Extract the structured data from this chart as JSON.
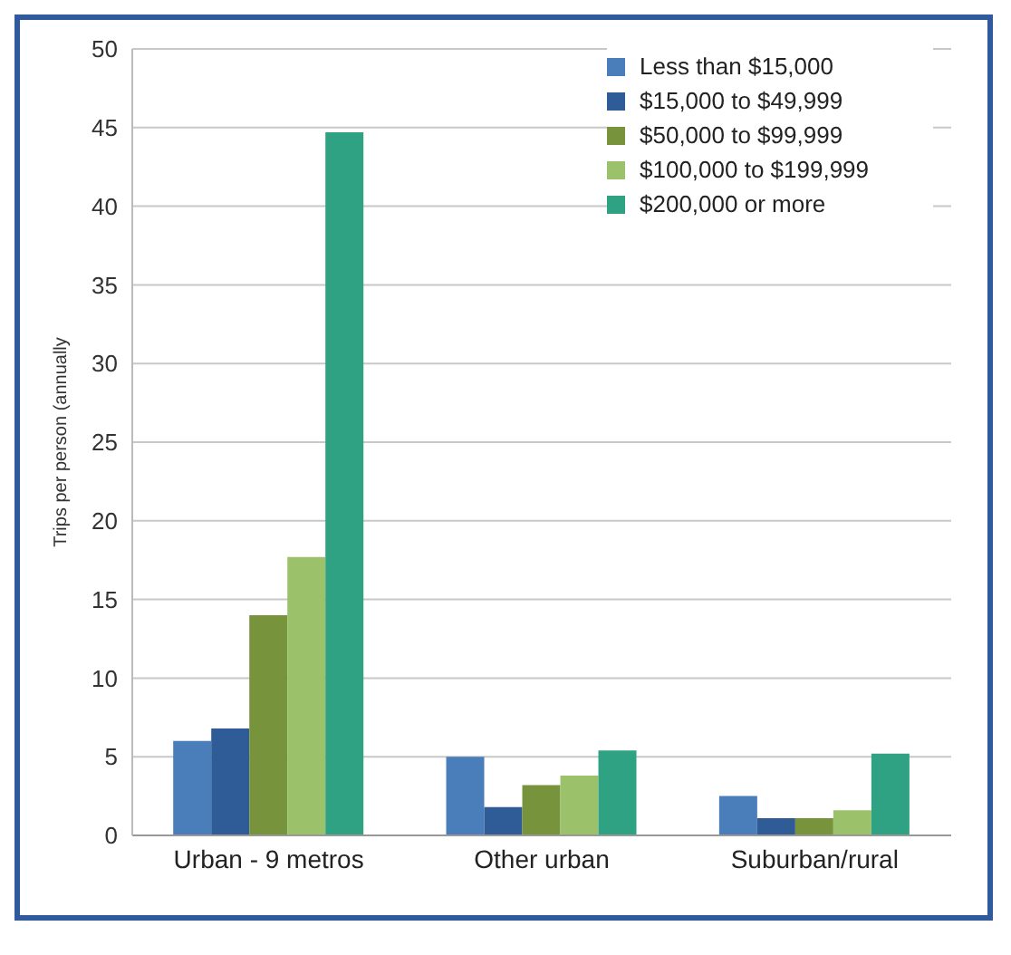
{
  "chart_data": {
    "type": "bar",
    "ylabel": "Trips per person (annually",
    "categories": [
      "Urban - 9 metros",
      "Other urban",
      "Suburban/rural"
    ],
    "series": [
      {
        "name": "Less than $15,000",
        "color": "#4a7ebb",
        "values": [
          6.0,
          5.0,
          2.5
        ]
      },
      {
        "name": "$15,000 to $49,999",
        "color": "#2f5b96",
        "values": [
          6.8,
          1.8,
          1.1
        ]
      },
      {
        "name": "$50,000 to $99,999",
        "color": "#77933c",
        "values": [
          14.0,
          3.2,
          1.1
        ]
      },
      {
        "name": "$100,000 to $199,999",
        "color": "#9bc26b",
        "values": [
          17.7,
          3.8,
          1.6
        ]
      },
      {
        "name": "$200,000 or more",
        "color": "#2fa283",
        "values": [
          44.7,
          5.4,
          5.2
        ]
      }
    ],
    "ylim": [
      0,
      50
    ],
    "yticks": [
      0,
      5,
      10,
      15,
      20,
      25,
      30,
      35,
      40,
      45,
      50
    ],
    "grid": "y",
    "legend": "top right"
  }
}
